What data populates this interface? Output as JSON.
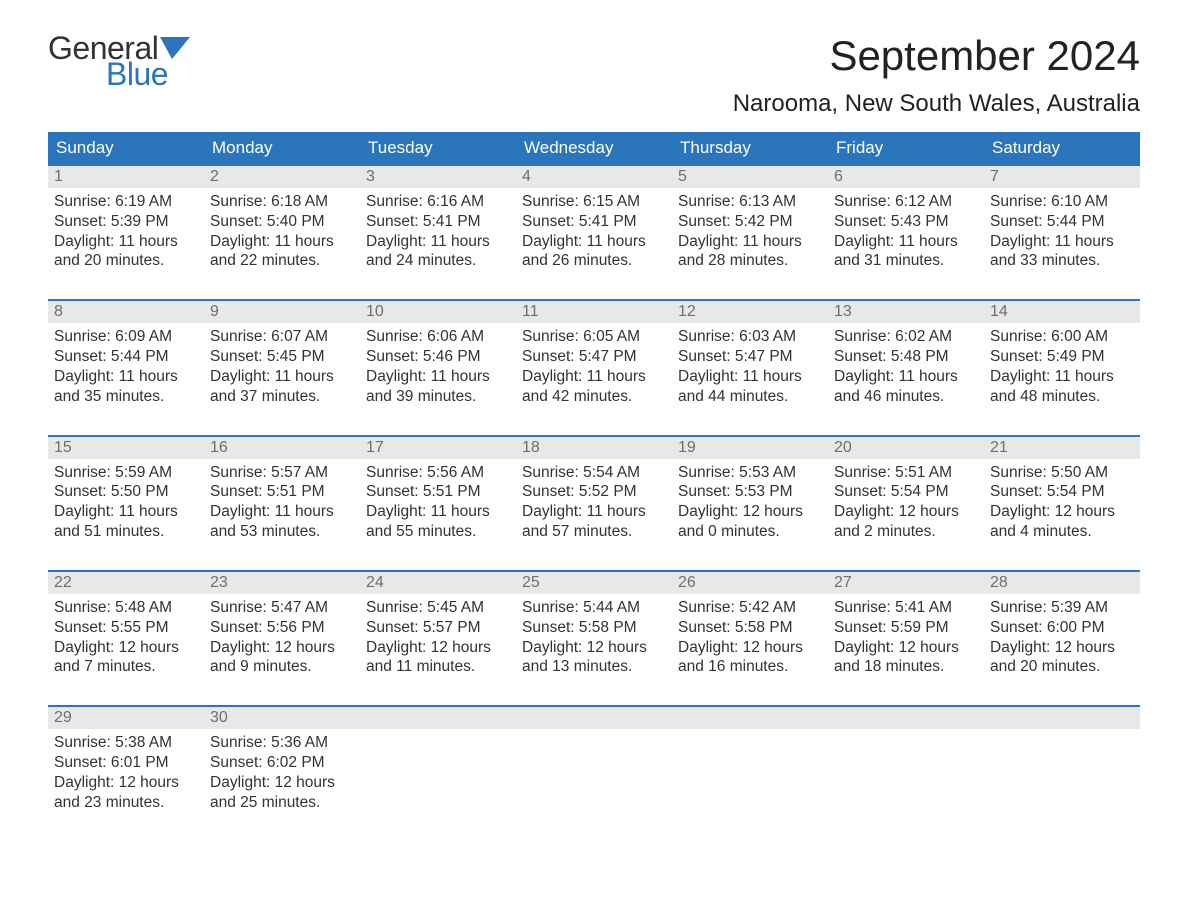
{
  "colors": {
    "brand_blue": "#2a75bb",
    "header_bg": "#2a75bb",
    "header_text": "#ffffff",
    "daynum_bg": "#e8e8e8",
    "daynum_text": "#6e6e6e",
    "body_text": "#333333",
    "page_bg": "#ffffff"
  },
  "typography": {
    "title_fontsize": 42,
    "location_fontsize": 24,
    "dow_fontsize": 17,
    "daynum_fontsize": 16,
    "body_fontsize": 15.5,
    "logo_fontsize": 32
  },
  "logo": {
    "line1": "General",
    "line2": "Blue"
  },
  "title": {
    "month": "September 2024",
    "location": "Narooma, New South Wales, Australia"
  },
  "days_of_week": [
    "Sunday",
    "Monday",
    "Tuesday",
    "Wednesday",
    "Thursday",
    "Friday",
    "Saturday"
  ],
  "calendar": {
    "type": "table",
    "columns": 7,
    "rows": 5,
    "weeks": [
      [
        {
          "num": "1",
          "sunrise": "Sunrise: 6:19 AM",
          "sunset": "Sunset: 5:39 PM",
          "d1": "Daylight: 11 hours",
          "d2": "and 20 minutes."
        },
        {
          "num": "2",
          "sunrise": "Sunrise: 6:18 AM",
          "sunset": "Sunset: 5:40 PM",
          "d1": "Daylight: 11 hours",
          "d2": "and 22 minutes."
        },
        {
          "num": "3",
          "sunrise": "Sunrise: 6:16 AM",
          "sunset": "Sunset: 5:41 PM",
          "d1": "Daylight: 11 hours",
          "d2": "and 24 minutes."
        },
        {
          "num": "4",
          "sunrise": "Sunrise: 6:15 AM",
          "sunset": "Sunset: 5:41 PM",
          "d1": "Daylight: 11 hours",
          "d2": "and 26 minutes."
        },
        {
          "num": "5",
          "sunrise": "Sunrise: 6:13 AM",
          "sunset": "Sunset: 5:42 PM",
          "d1": "Daylight: 11 hours",
          "d2": "and 28 minutes."
        },
        {
          "num": "6",
          "sunrise": "Sunrise: 6:12 AM",
          "sunset": "Sunset: 5:43 PM",
          "d1": "Daylight: 11 hours",
          "d2": "and 31 minutes."
        },
        {
          "num": "7",
          "sunrise": "Sunrise: 6:10 AM",
          "sunset": "Sunset: 5:44 PM",
          "d1": "Daylight: 11 hours",
          "d2": "and 33 minutes."
        }
      ],
      [
        {
          "num": "8",
          "sunrise": "Sunrise: 6:09 AM",
          "sunset": "Sunset: 5:44 PM",
          "d1": "Daylight: 11 hours",
          "d2": "and 35 minutes."
        },
        {
          "num": "9",
          "sunrise": "Sunrise: 6:07 AM",
          "sunset": "Sunset: 5:45 PM",
          "d1": "Daylight: 11 hours",
          "d2": "and 37 minutes."
        },
        {
          "num": "10",
          "sunrise": "Sunrise: 6:06 AM",
          "sunset": "Sunset: 5:46 PM",
          "d1": "Daylight: 11 hours",
          "d2": "and 39 minutes."
        },
        {
          "num": "11",
          "sunrise": "Sunrise: 6:05 AM",
          "sunset": "Sunset: 5:47 PM",
          "d1": "Daylight: 11 hours",
          "d2": "and 42 minutes."
        },
        {
          "num": "12",
          "sunrise": "Sunrise: 6:03 AM",
          "sunset": "Sunset: 5:47 PM",
          "d1": "Daylight: 11 hours",
          "d2": "and 44 minutes."
        },
        {
          "num": "13",
          "sunrise": "Sunrise: 6:02 AM",
          "sunset": "Sunset: 5:48 PM",
          "d1": "Daylight: 11 hours",
          "d2": "and 46 minutes."
        },
        {
          "num": "14",
          "sunrise": "Sunrise: 6:00 AM",
          "sunset": "Sunset: 5:49 PM",
          "d1": "Daylight: 11 hours",
          "d2": "and 48 minutes."
        }
      ],
      [
        {
          "num": "15",
          "sunrise": "Sunrise: 5:59 AM",
          "sunset": "Sunset: 5:50 PM",
          "d1": "Daylight: 11 hours",
          "d2": "and 51 minutes."
        },
        {
          "num": "16",
          "sunrise": "Sunrise: 5:57 AM",
          "sunset": "Sunset: 5:51 PM",
          "d1": "Daylight: 11 hours",
          "d2": "and 53 minutes."
        },
        {
          "num": "17",
          "sunrise": "Sunrise: 5:56 AM",
          "sunset": "Sunset: 5:51 PM",
          "d1": "Daylight: 11 hours",
          "d2": "and 55 minutes."
        },
        {
          "num": "18",
          "sunrise": "Sunrise: 5:54 AM",
          "sunset": "Sunset: 5:52 PM",
          "d1": "Daylight: 11 hours",
          "d2": "and 57 minutes."
        },
        {
          "num": "19",
          "sunrise": "Sunrise: 5:53 AM",
          "sunset": "Sunset: 5:53 PM",
          "d1": "Daylight: 12 hours",
          "d2": "and 0 minutes."
        },
        {
          "num": "20",
          "sunrise": "Sunrise: 5:51 AM",
          "sunset": "Sunset: 5:54 PM",
          "d1": "Daylight: 12 hours",
          "d2": "and 2 minutes."
        },
        {
          "num": "21",
          "sunrise": "Sunrise: 5:50 AM",
          "sunset": "Sunset: 5:54 PM",
          "d1": "Daylight: 12 hours",
          "d2": "and 4 minutes."
        }
      ],
      [
        {
          "num": "22",
          "sunrise": "Sunrise: 5:48 AM",
          "sunset": "Sunset: 5:55 PM",
          "d1": "Daylight: 12 hours",
          "d2": "and 7 minutes."
        },
        {
          "num": "23",
          "sunrise": "Sunrise: 5:47 AM",
          "sunset": "Sunset: 5:56 PM",
          "d1": "Daylight: 12 hours",
          "d2": "and 9 minutes."
        },
        {
          "num": "24",
          "sunrise": "Sunrise: 5:45 AM",
          "sunset": "Sunset: 5:57 PM",
          "d1": "Daylight: 12 hours",
          "d2": "and 11 minutes."
        },
        {
          "num": "25",
          "sunrise": "Sunrise: 5:44 AM",
          "sunset": "Sunset: 5:58 PM",
          "d1": "Daylight: 12 hours",
          "d2": "and 13 minutes."
        },
        {
          "num": "26",
          "sunrise": "Sunrise: 5:42 AM",
          "sunset": "Sunset: 5:58 PM",
          "d1": "Daylight: 12 hours",
          "d2": "and 16 minutes."
        },
        {
          "num": "27",
          "sunrise": "Sunrise: 5:41 AM",
          "sunset": "Sunset: 5:59 PM",
          "d1": "Daylight: 12 hours",
          "d2": "and 18 minutes."
        },
        {
          "num": "28",
          "sunrise": "Sunrise: 5:39 AM",
          "sunset": "Sunset: 6:00 PM",
          "d1": "Daylight: 12 hours",
          "d2": "and 20 minutes."
        }
      ],
      [
        {
          "num": "29",
          "sunrise": "Sunrise: 5:38 AM",
          "sunset": "Sunset: 6:01 PM",
          "d1": "Daylight: 12 hours",
          "d2": "and 23 minutes."
        },
        {
          "num": "30",
          "sunrise": "Sunrise: 5:36 AM",
          "sunset": "Sunset: 6:02 PM",
          "d1": "Daylight: 12 hours",
          "d2": "and 25 minutes."
        },
        {
          "empty": true
        },
        {
          "empty": true
        },
        {
          "empty": true
        },
        {
          "empty": true
        },
        {
          "empty": true
        }
      ]
    ]
  }
}
